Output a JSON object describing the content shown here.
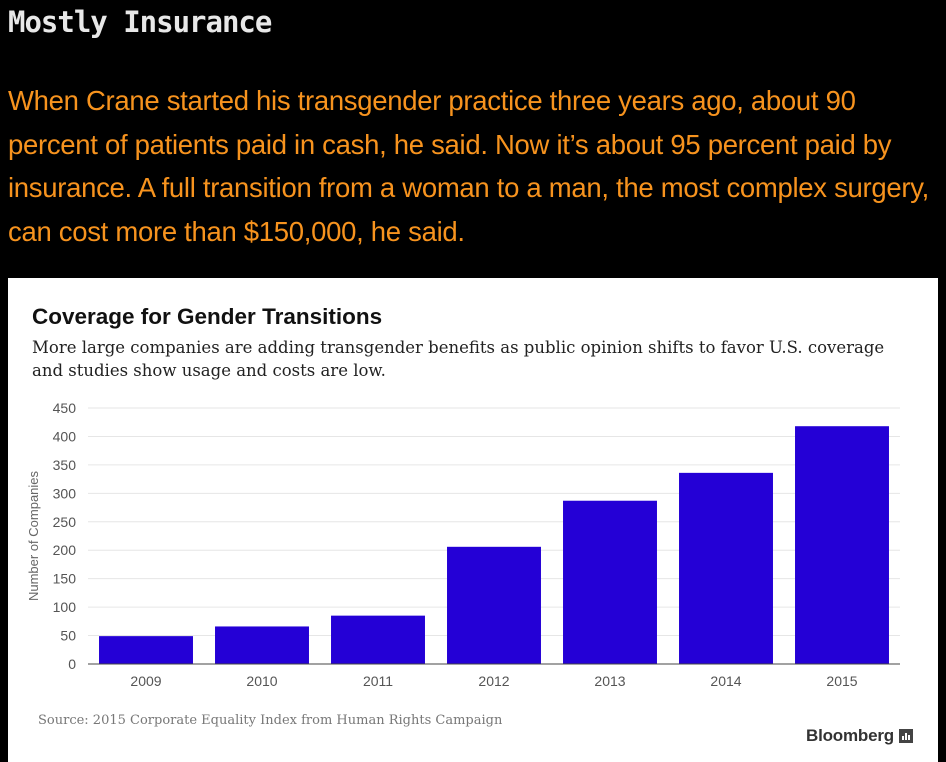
{
  "article": {
    "heading": "Mostly Insurance",
    "paragraph": "When Crane started his transgender practice three years ago, about 90 percent of patients paid in cash, he said. Now it’s about 95 percent paid by insurance. A full transition from a woman to a man, the most complex surgery, can cost more than $150,000, he said."
  },
  "chart_data": {
    "type": "bar",
    "title": "Coverage for Gender Transitions",
    "subtitle": "More large companies are adding transgender benefits as public opinion shifts to favor U.S. coverage and studies show usage and costs are low.",
    "categories": [
      "2009",
      "2010",
      "2011",
      "2012",
      "2013",
      "2014",
      "2015"
    ],
    "values": [
      49,
      66,
      85,
      206,
      287,
      336,
      418
    ],
    "xlabel": "",
    "ylabel": "Number of Companies",
    "ylim": [
      0,
      450
    ],
    "yticks": [
      0,
      50,
      100,
      150,
      200,
      250,
      300,
      350,
      400,
      450
    ],
    "grid": true,
    "bar_color": "#2400d6",
    "source": "Source: 2015 Corporate Equality Index from Human Rights Campaign"
  },
  "branding": {
    "logo_text": "Bloomberg",
    "logo_icon": "bloomberg-chart-icon"
  }
}
